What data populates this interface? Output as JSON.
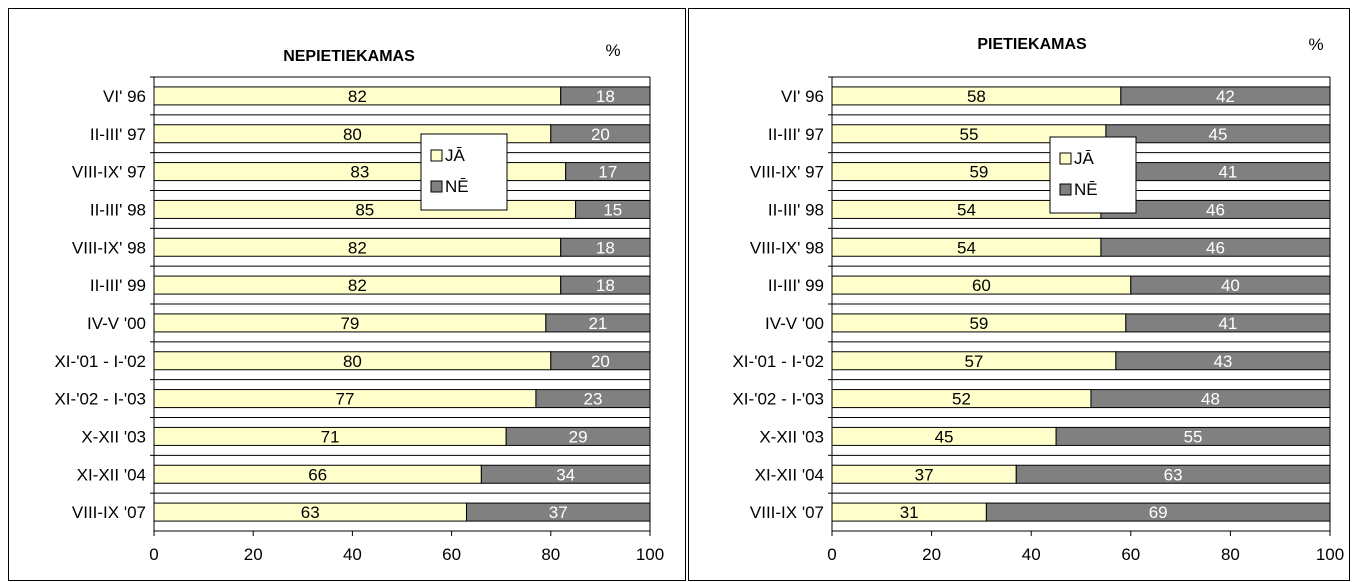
{
  "chart_data": [
    {
      "type": "bar",
      "orientation": "horizontal",
      "stacked": true,
      "title": "NEPIETIEKAMAS",
      "unit": "%",
      "categories": [
        "VI' 96",
        "II-III' 97",
        "VIII-IX' 97",
        "II-III' 98",
        "VIII-IX' 98",
        "II-III' 99",
        "IV-V '00",
        "XI-'01 - I-'02",
        "XI-'02 - I-'03",
        "X-XII '03",
        "XI-XII '04",
        "VIII-IX '07"
      ],
      "series": [
        {
          "name": "JĀ",
          "values": [
            82,
            80,
            83,
            85,
            82,
            82,
            79,
            80,
            77,
            71,
            66,
            63
          ]
        },
        {
          "name": "NĒ",
          "values": [
            18,
            20,
            17,
            15,
            18,
            18,
            21,
            20,
            23,
            29,
            34,
            37
          ]
        }
      ],
      "xlim": [
        0,
        100
      ],
      "xticks": [
        "0",
        "20",
        "40",
        "60",
        "80",
        "100"
      ],
      "grid": "horizontal gridlines",
      "legend": "upper-middle"
    },
    {
      "type": "bar",
      "orientation": "horizontal",
      "stacked": true,
      "title": "PIETIEKAMAS",
      "unit": "%",
      "categories": [
        "VI' 96",
        "II-III' 97",
        "VIII-IX' 97",
        "II-III' 98",
        "VIII-IX' 98",
        "II-III' 99",
        "IV-V '00",
        "XI-'01 - I-'02",
        "XI-'02 - I-'03",
        "X-XII '03",
        "XI-XII '04",
        "VIII-IX '07"
      ],
      "series": [
        {
          "name": "JĀ",
          "values": [
            58,
            55,
            59,
            54,
            54,
            60,
            59,
            57,
            52,
            45,
            37,
            31
          ]
        },
        {
          "name": "NĒ",
          "values": [
            42,
            45,
            41,
            46,
            46,
            40,
            41,
            43,
            48,
            55,
            63,
            69
          ]
        }
      ],
      "xlim": [
        0,
        100
      ],
      "xticks": [
        "0",
        "20",
        "40",
        "60",
        "80",
        "100"
      ],
      "grid": "horizontal gridlines",
      "legend": "upper-middle"
    }
  ],
  "colors": {
    "ja": "#FFFFCC",
    "ne": "#808080",
    "ja_label": "#000000",
    "ne_label": "#FFFFFF",
    "axis": "#000000",
    "grid": "#000000"
  }
}
